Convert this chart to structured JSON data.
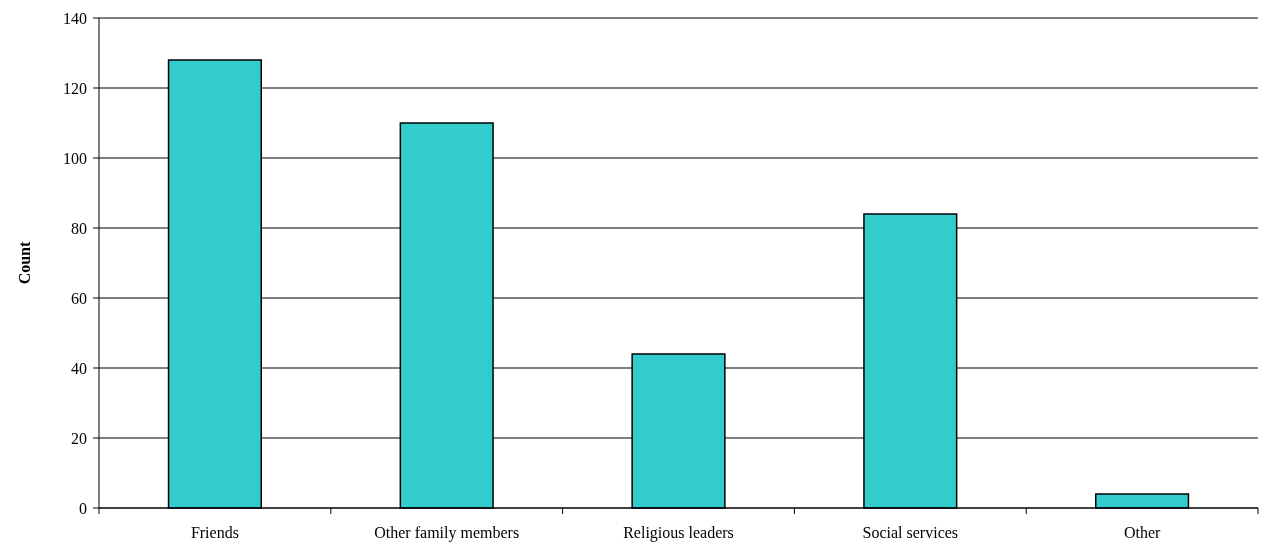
{
  "chart_data": {
    "type": "bar",
    "ylabel": "Count",
    "categories": [
      "Friends",
      "Other family members",
      "Religious leaders",
      "Social services",
      "Other"
    ],
    "values": [
      128,
      110,
      44,
      84,
      4
    ],
    "color": "#33cccc",
    "ylim": [
      0,
      140
    ],
    "yticks": [
      0,
      20,
      40,
      60,
      80,
      100,
      120,
      140
    ],
    "grid": "y"
  }
}
